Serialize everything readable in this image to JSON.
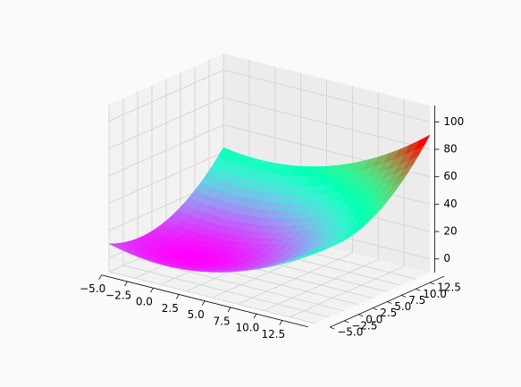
{
  "chart_data": {
    "type": "surface3d",
    "title": "",
    "xlabel": "",
    "ylabel": "",
    "zlabel": "",
    "colormap": "rainbow",
    "grid": true,
    "x_range": [
      -5,
      15
    ],
    "y_range": [
      -5,
      15
    ],
    "z_range": [
      -10,
      112
    ],
    "x_ticks": [
      "−5.0",
      "−2.5",
      "0.0",
      "2.5",
      "5.0",
      "7.5",
      "10.0",
      "12.5"
    ],
    "y_ticks": [
      "−5.0",
      "−2.5",
      "0.0",
      "2.5",
      "5.0",
      "7.5",
      "10.0",
      "12.5"
    ],
    "z_ticks": [
      "0",
      "20",
      "40",
      "60",
      "80",
      "100"
    ],
    "x_tick_values": [
      -5,
      -2.5,
      0,
      2.5,
      5,
      7.5,
      10,
      12.5
    ],
    "y_tick_values": [
      -5,
      -2.5,
      0,
      2.5,
      5,
      7.5,
      10,
      12.5
    ],
    "z_tick_values": [
      0,
      20,
      40,
      60,
      80,
      100
    ],
    "surface_corner_values": [
      {
        "x": -5,
        "y": -5,
        "z": 10
      },
      {
        "x": 5,
        "y": -5,
        "z": 0
      },
      {
        "x": -5,
        "y": 5,
        "z": 50
      },
      {
        "x": 5,
        "y": 5,
        "z": 30
      },
      {
        "x": 15,
        "y": 15,
        "z": 110
      }
    ]
  }
}
